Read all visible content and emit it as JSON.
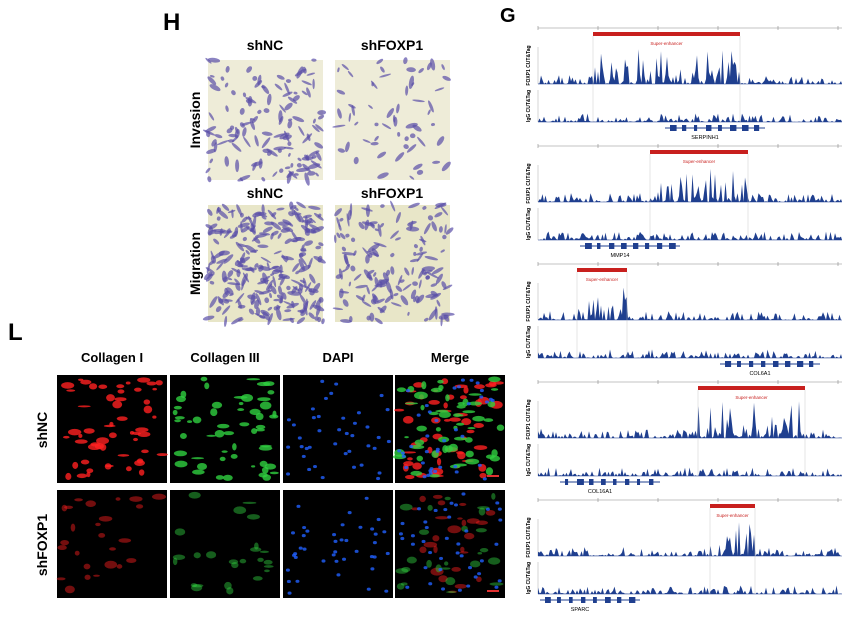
{
  "panel_h": {
    "label": "H",
    "rows": [
      {
        "label": "Invasion",
        "columns": [
          "shNC",
          "shFOXP1"
        ]
      },
      {
        "label": "Migration",
        "columns": [
          "shNC",
          "shFOXP1"
        ]
      }
    ]
  },
  "panel_l": {
    "label": "L",
    "columns": [
      "Collagen I",
      "Collagen III",
      "DAPI",
      "Merge"
    ],
    "rows": [
      "shNC",
      "shFOXP1"
    ]
  },
  "panel_g": {
    "label": "G",
    "tracks": [
      "FOXP1 CUT&Tag",
      "IgG CUT&Tag"
    ],
    "annotation": "Super-enhancer",
    "loci": [
      {
        "gene": "SERPINH1"
      },
      {
        "gene": "MMP14"
      },
      {
        "gene": "COL6A1"
      },
      {
        "gene": "COL16A1"
      },
      {
        "gene": "SPARC"
      }
    ]
  }
}
